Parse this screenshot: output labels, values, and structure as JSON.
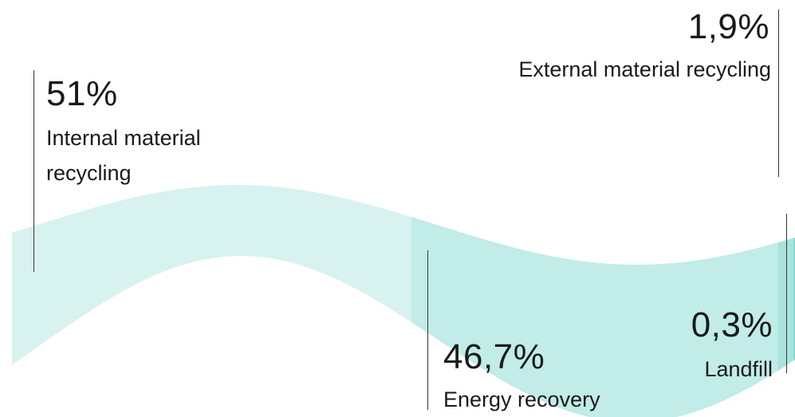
{
  "colors": {
    "internal": "#d8f2ef",
    "energy": "#c1ece7",
    "external": "#a9e3dc",
    "landfill": "#7fd3ca",
    "text": "#1a1a1a",
    "rule": "#333333"
  },
  "chart_data": {
    "type": "area",
    "title": "",
    "series": [
      {
        "name": "Internal material recycling",
        "value": 51,
        "label": "51%"
      },
      {
        "name": "Energy recovery",
        "value": 46.7,
        "label": "46,7%"
      },
      {
        "name": "External material recycling",
        "value": 1.9,
        "label": "1,9%"
      },
      {
        "name": "Landfill",
        "value": 0.3,
        "label": "0,3%"
      }
    ],
    "labels": {
      "internal_line1": "Internal material",
      "internal_line2": "recycling"
    }
  }
}
